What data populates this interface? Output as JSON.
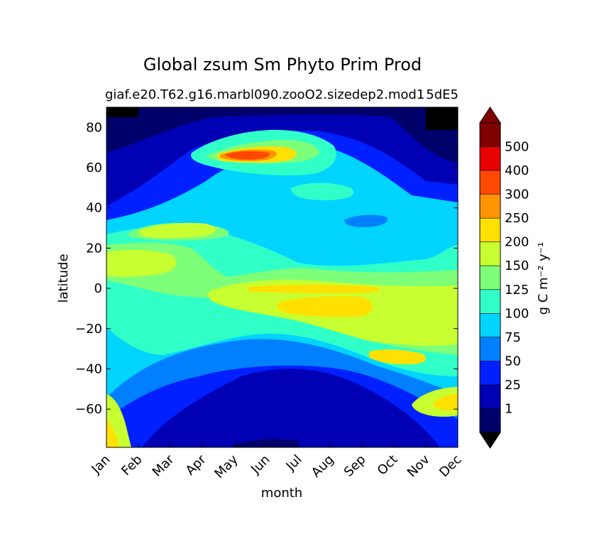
{
  "chart_data": {
    "type": "heatmap",
    "title": "Global zsum Sm Phyto Prim Prod",
    "subtitle_left": "giaf.e20.T62.g16.marbl090.zooO2.sizedep2.mod1",
    "subtitle_right": "5dE5",
    "xlabel": "month",
    "ylabel": "latitude",
    "x_categories": [
      "Jan",
      "Feb",
      "Mar",
      "Apr",
      "May",
      "Jun",
      "Jul",
      "Aug",
      "Sep",
      "Oct",
      "Nov",
      "Dec"
    ],
    "ylim": [
      -79,
      90
    ],
    "yticks": [
      80,
      60,
      40,
      20,
      0,
      -20,
      -40,
      -60
    ],
    "colorbar": {
      "label": "g C m⁻² y⁻¹",
      "levels": [
        "1",
        "25",
        "50",
        "75",
        "100",
        "125",
        "150",
        "200",
        "250",
        "300",
        "400",
        "500"
      ],
      "colors": [
        "#00006a",
        "#0000b4",
        "#0020ff",
        "#0080ff",
        "#00d4ff",
        "#30ffc8",
        "#7dff7a",
        "#c8ff30",
        "#ffe000",
        "#ff9500",
        "#ff4800",
        "#e80000",
        "#800000"
      ],
      "extend": "both"
    },
    "regions_note_values": [
      {
        "month": "Jun",
        "lat": 65,
        "value": 300
      },
      {
        "month": "Aug",
        "lat": -8,
        "value": 200
      },
      {
        "month": "Jul",
        "lat": 2,
        "value": 200
      },
      {
        "month": "Oct",
        "lat": -33,
        "value": 200
      },
      {
        "month": "Apr",
        "lat": 30,
        "value": 150
      },
      {
        "month": "Jan",
        "lat": 15,
        "value": 150
      },
      {
        "month": "Jun",
        "lat": -60,
        "value": 25
      },
      {
        "month": "Dec",
        "lat": -57,
        "value": 200
      }
    ]
  }
}
